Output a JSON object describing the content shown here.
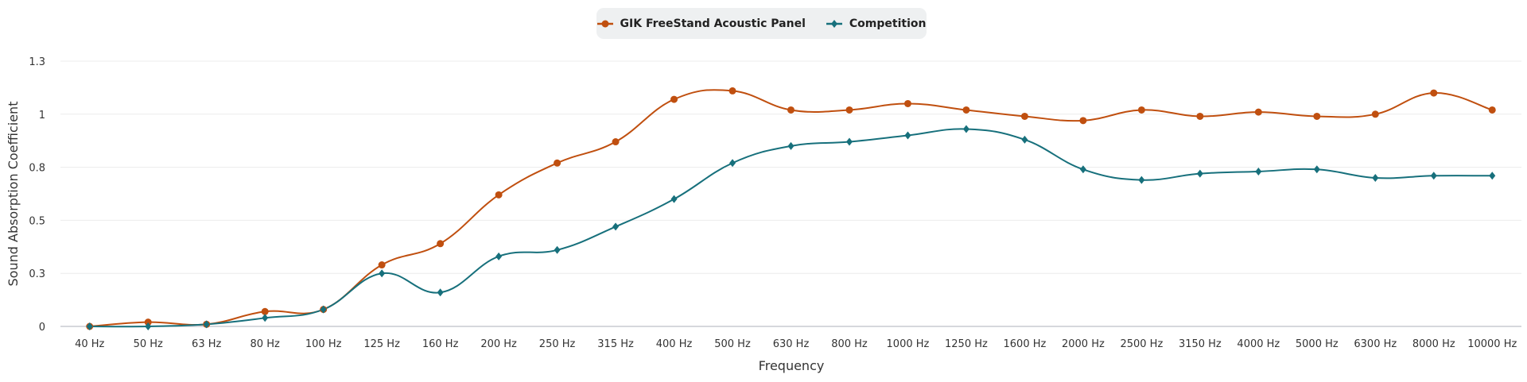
{
  "chart_data": {
    "type": "line",
    "xlabel": "Frequency",
    "ylabel": "Sound Absorption Coefficient",
    "ylim": [
      0,
      1.25
    ],
    "yticks": [
      0,
      0.25,
      0.5,
      0.75,
      1,
      1.25
    ],
    "ytick_labels": [
      "0",
      "0.3",
      "0.5",
      "0.8",
      "1",
      "1.3"
    ],
    "grid": true,
    "legend_placement": "top-center",
    "categories": [
      "40 Hz",
      "50 Hz",
      "63 Hz",
      "80 Hz",
      "100 Hz",
      "125 Hz",
      "160 Hz",
      "200 Hz",
      "250 Hz",
      "315 Hz",
      "400 Hz",
      "500 Hz",
      "630 Hz",
      "800 Hz",
      "1000 Hz",
      "1250 Hz",
      "1600 Hz",
      "2000 Hz",
      "2500 Hz",
      "3150 Hz",
      "4000 Hz",
      "5000 Hz",
      "6300 Hz",
      "8000 Hz",
      "10000 Hz"
    ],
    "series": [
      {
        "name": "GIK FreeStand Acoustic Panel",
        "color": "#c04f0f",
        "marker": "circle",
        "values": [
          0.0,
          0.02,
          0.01,
          0.07,
          0.08,
          0.29,
          0.39,
          0.62,
          0.77,
          0.87,
          1.07,
          1.11,
          1.02,
          1.02,
          1.05,
          1.02,
          0.99,
          0.97,
          1.02,
          0.99,
          1.01,
          0.99,
          1.0,
          1.1,
          1.02
        ]
      },
      {
        "name": "Competition",
        "color": "#17707c",
        "marker": "diamond",
        "values": [
          0.0,
          0.0,
          0.01,
          0.04,
          0.08,
          0.25,
          0.16,
          0.33,
          0.36,
          0.47,
          0.6,
          0.77,
          0.85,
          0.87,
          0.9,
          0.93,
          0.88,
          0.74,
          0.69,
          0.72,
          0.73,
          0.74,
          0.7,
          0.71,
          0.71
        ]
      }
    ]
  }
}
